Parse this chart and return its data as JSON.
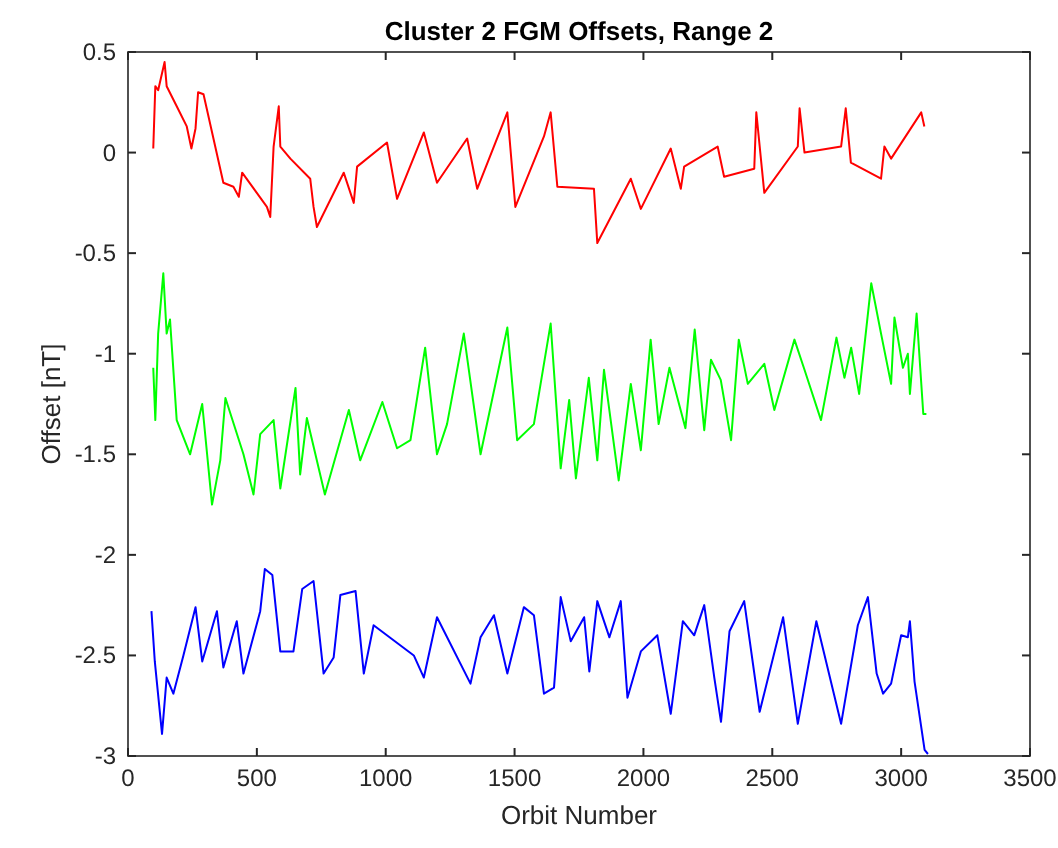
{
  "chart_data": {
    "type": "line",
    "title": "Cluster 2 FGM Offsets, Range 2",
    "xlabel": "Orbit Number",
    "ylabel": "Offset [nT]",
    "xlim": [
      0,
      3500
    ],
    "xticks": [
      0,
      500,
      1000,
      1500,
      2000,
      2500,
      3000,
      3500
    ],
    "ylim": [
      -3,
      0.5
    ],
    "yticks": [
      -3,
      -2.5,
      -2,
      -1.5,
      -1,
      -0.5,
      0,
      0.5
    ],
    "grid": false,
    "series": [
      {
        "color": "#ff0000",
        "x": [
          98,
          106,
          117,
          142,
          150,
          189,
          228,
          246,
          262,
          272,
          293,
          370,
          409,
          430,
          443,
          539,
          552,
          565,
          585,
          591,
          630,
          707,
          720,
          733,
          837,
          876,
          889,
          1005,
          1044,
          1148,
          1199,
          1316,
          1355,
          1472,
          1503,
          1614,
          1640,
          1666,
          1808,
          1821,
          1951,
          1990,
          2106,
          2145,
          2158,
          2288,
          2313,
          2430,
          2438,
          2469,
          2599,
          2606,
          2625,
          2767,
          2785,
          2805,
          2922,
          2935,
          2961,
          3078,
          3090
        ],
        "values": [
          0.02,
          0.33,
          0.31,
          0.45,
          0.33,
          0.23,
          0.13,
          0.02,
          0.12,
          0.3,
          0.29,
          -0.15,
          -0.17,
          -0.22,
          -0.1,
          -0.27,
          -0.32,
          0.03,
          0.23,
          0.03,
          -0.03,
          -0.13,
          -0.27,
          -0.37,
          -0.1,
          -0.25,
          -0.07,
          0.05,
          -0.23,
          0.1,
          -0.15,
          0.07,
          -0.18,
          0.2,
          -0.27,
          0.08,
          0.2,
          -0.17,
          -0.18,
          -0.45,
          -0.13,
          -0.28,
          0.02,
          -0.18,
          -0.07,
          0.03,
          -0.12,
          -0.08,
          0.2,
          -0.2,
          0.03,
          0.22,
          0,
          0.03,
          0.22,
          -0.05,
          -0.13,
          0.03,
          -0.03,
          0.2,
          0.13
        ]
      },
      {
        "color": "#00ff00",
        "x": [
          98,
          106,
          117,
          137,
          150,
          163,
          189,
          241,
          288,
          326,
          358,
          378,
          448,
          487,
          513,
          565,
          591,
          650,
          668,
          694,
          764,
          857,
          901,
          987,
          1044,
          1096,
          1153,
          1199,
          1238,
          1303,
          1368,
          1472,
          1510,
          1575,
          1640,
          1679,
          1712,
          1738,
          1788,
          1821,
          1847,
          1904,
          1951,
          1990,
          2028,
          2059,
          2101,
          2163,
          2199,
          2236,
          2262,
          2300,
          2340,
          2370,
          2405,
          2469,
          2508,
          2586,
          2625,
          2689,
          2749,
          2780,
          2806,
          2837,
          2884,
          2922,
          2961,
          2974,
          3007,
          3026,
          3034,
          3060,
          3086,
          3098
        ],
        "values": [
          -1.07,
          -1.33,
          -0.9,
          -0.6,
          -0.9,
          -0.83,
          -1.33,
          -1.5,
          -1.25,
          -1.75,
          -1.53,
          -1.22,
          -1.5,
          -1.7,
          -1.4,
          -1.33,
          -1.67,
          -1.17,
          -1.6,
          -1.32,
          -1.7,
          -1.28,
          -1.53,
          -1.24,
          -1.47,
          -1.43,
          -0.97,
          -1.5,
          -1.35,
          -0.9,
          -1.5,
          -0.87,
          -1.43,
          -1.35,
          -0.85,
          -1.57,
          -1.23,
          -1.62,
          -1.12,
          -1.53,
          -1.08,
          -1.63,
          -1.15,
          -1.48,
          -0.93,
          -1.35,
          -1.07,
          -1.37,
          -0.88,
          -1.38,
          -1.03,
          -1.13,
          -1.43,
          -0.93,
          -1.15,
          -1.05,
          -1.28,
          -0.93,
          -1.08,
          -1.33,
          -0.92,
          -1.12,
          -0.97,
          -1.2,
          -0.65,
          -0.9,
          -1.15,
          -0.82,
          -1.07,
          -1,
          -1.2,
          -0.8,
          -1.3,
          -1.3
        ]
      },
      {
        "color": "#0000ff",
        "x": [
          91,
          104,
          132,
          150,
          176,
          215,
          262,
          288,
          345,
          370,
          422,
          448,
          513,
          531,
          560,
          591,
          642,
          676,
          720,
          759,
          798,
          824,
          883,
          915,
          953,
          1109,
          1148,
          1199,
          1329,
          1368,
          1420,
          1472,
          1536,
          1575,
          1614,
          1653,
          1679,
          1718,
          1770,
          1790,
          1821,
          1868,
          1912,
          1938,
          1990,
          2054,
          2106,
          2153,
          2197,
          2236,
          2275,
          2301,
          2334,
          2391,
          2451,
          2542,
          2599,
          2671,
          2767,
          2832,
          2871,
          2905,
          2930,
          2961,
          3000,
          3026,
          3034,
          3052,
          3091,
          3104
        ],
        "values": [
          -2.28,
          -2.53,
          -2.89,
          -2.61,
          -2.69,
          -2.5,
          -2.26,
          -2.53,
          -2.28,
          -2.56,
          -2.33,
          -2.59,
          -2.28,
          -2.07,
          -2.1,
          -2.48,
          -2.48,
          -2.17,
          -2.13,
          -2.59,
          -2.51,
          -2.2,
          -2.18,
          -2.59,
          -2.35,
          -2.5,
          -2.61,
          -2.31,
          -2.64,
          -2.41,
          -2.3,
          -2.59,
          -2.26,
          -2.3,
          -2.69,
          -2.66,
          -2.21,
          -2.43,
          -2.31,
          -2.58,
          -2.23,
          -2.41,
          -2.23,
          -2.71,
          -2.48,
          -2.4,
          -2.79,
          -2.33,
          -2.4,
          -2.25,
          -2.61,
          -2.83,
          -2.38,
          -2.23,
          -2.78,
          -2.31,
          -2.84,
          -2.33,
          -2.84,
          -2.35,
          -2.21,
          -2.59,
          -2.69,
          -2.64,
          -2.4,
          -2.41,
          -2.33,
          -2.63,
          -2.97,
          -2.99
        ]
      }
    ]
  }
}
